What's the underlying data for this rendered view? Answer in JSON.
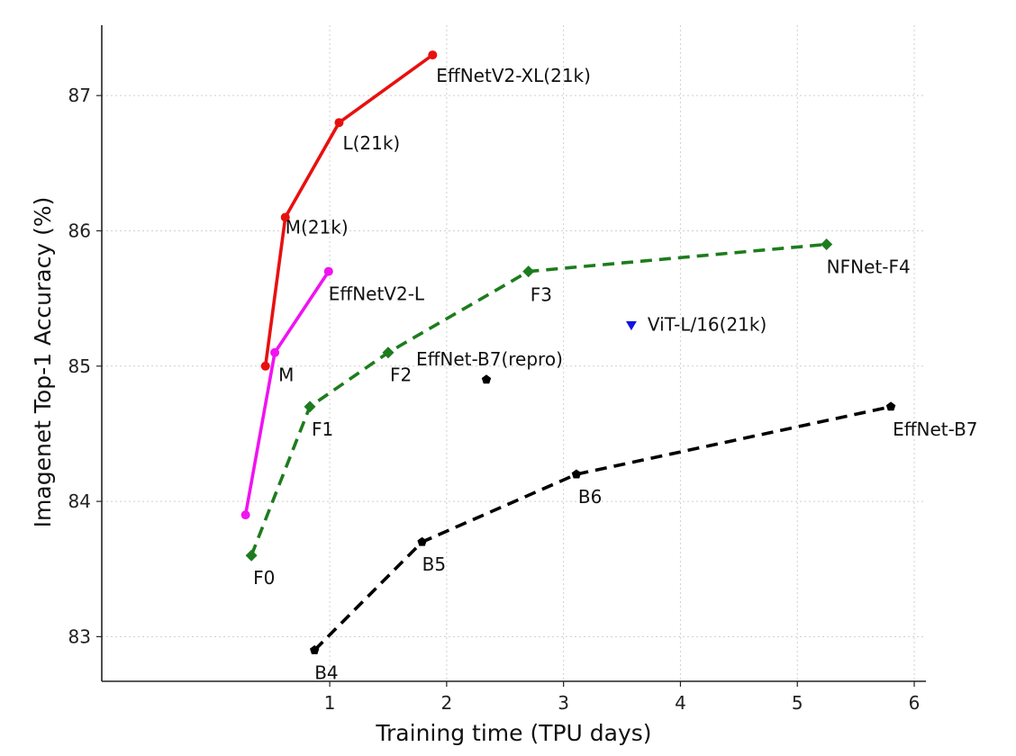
{
  "chart_data": {
    "type": "line",
    "xlabel": "Training time (TPU days)",
    "ylabel": "Imagenet Top-1 Accuracy (%)",
    "xlim": [
      -0.95,
      6.1
    ],
    "ylim": [
      82.67,
      87.52
    ],
    "xticks": [
      1,
      2,
      3,
      4,
      5,
      6
    ],
    "yticks": [
      83,
      84,
      85,
      86,
      87
    ],
    "grid": true,
    "series": [
      {
        "color": "#e8100f",
        "dash": "solid",
        "marker": "circle",
        "points": [
          {
            "x": 0.45,
            "y": 85.0,
            "label": ""
          },
          {
            "x": 0.62,
            "y": 86.1,
            "label": "M(21k)"
          },
          {
            "x": 1.08,
            "y": 86.8,
            "label": "L(21k)"
          },
          {
            "x": 1.88,
            "y": 87.3,
            "label": "EffNetV2-XL(21k)"
          }
        ]
      },
      {
        "color": "#f013f0",
        "dash": "solid",
        "marker": "circle",
        "points": [
          {
            "x": 0.28,
            "y": 83.9,
            "label": ""
          },
          {
            "x": 0.53,
            "y": 85.1,
            "label": "M"
          },
          {
            "x": 0.99,
            "y": 85.7,
            "label": "EffNetV2-L"
          }
        ]
      },
      {
        "color": "#1d7c1d",
        "dash": "dashed",
        "marker": "diamond",
        "points": [
          {
            "x": 0.33,
            "y": 83.6,
            "label": "F0"
          },
          {
            "x": 0.83,
            "y": 84.7,
            "label": "F1"
          },
          {
            "x": 1.5,
            "y": 85.1,
            "label": "F2"
          },
          {
            "x": 2.7,
            "y": 85.7,
            "label": "F3"
          },
          {
            "x": 5.25,
            "y": 85.9,
            "label": "NFNet-F4"
          }
        ]
      },
      {
        "color": "#000000",
        "dash": "dashed",
        "marker": "pentagon",
        "points": [
          {
            "x": 0.87,
            "y": 82.9,
            "label": "B4"
          },
          {
            "x": 1.79,
            "y": 83.7,
            "label": "B5"
          },
          {
            "x": 3.11,
            "y": 84.2,
            "label": "B6"
          },
          {
            "x": 5.8,
            "y": 84.7,
            "label": "EffNet-B7"
          }
        ]
      }
    ],
    "singles": [
      {
        "x": 2.34,
        "y": 84.9,
        "label": "EffNet-B7(repro)",
        "color": "#000000",
        "marker": "pentagon"
      },
      {
        "x": 3.58,
        "y": 85.3,
        "label": "ViT-L/16(21k)",
        "color": "#1313e0",
        "marker": "triangle-down"
      }
    ]
  }
}
